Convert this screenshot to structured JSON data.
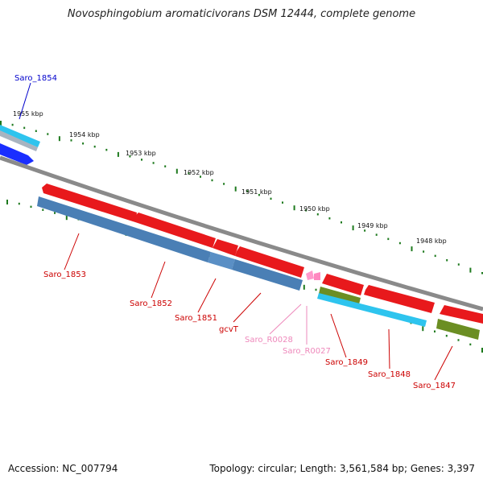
{
  "title": "Novosphingobium aromaticivorans DSM 12444, complete genome",
  "footer": {
    "accession": "Accession: NC_007794",
    "summary": "Topology: circular; Length: 3,561,584 bp; Genes: 3,397"
  },
  "scale_labels": [
    "1955 kbp",
    "1954 kbp",
    "1953 kbp",
    "1952 kbp",
    "1951 kbp",
    "1950 kbp",
    "1949 kbp",
    "1948 kbp"
  ],
  "genes": [
    {
      "label": "Saro_1854",
      "color": "#0000cc"
    },
    {
      "label": "Saro_1853",
      "color": "#cc0000"
    },
    {
      "label": "Saro_1852",
      "color": "#cc0000"
    },
    {
      "label": "Saro_1851",
      "color": "#cc0000"
    },
    {
      "label": "gcvT",
      "color": "#cc0000"
    },
    {
      "label": "Saro_R0028",
      "color": "#ee88bb"
    },
    {
      "label": "Saro_R0027",
      "color": "#ee88bb"
    },
    {
      "label": "Saro_1849",
      "color": "#cc0000"
    },
    {
      "label": "Saro_1848",
      "color": "#cc0000"
    },
    {
      "label": "Saro_1847",
      "color": "#cc0000"
    }
  ],
  "colors": {
    "backbone": "#808080",
    "cds": "#e8191c",
    "gene_blue": "#4a7fb5",
    "cyan": "#2ec4ee",
    "olive": "#6b8e23",
    "rna": "#ff99cc",
    "tick": "#1e7a1e"
  }
}
